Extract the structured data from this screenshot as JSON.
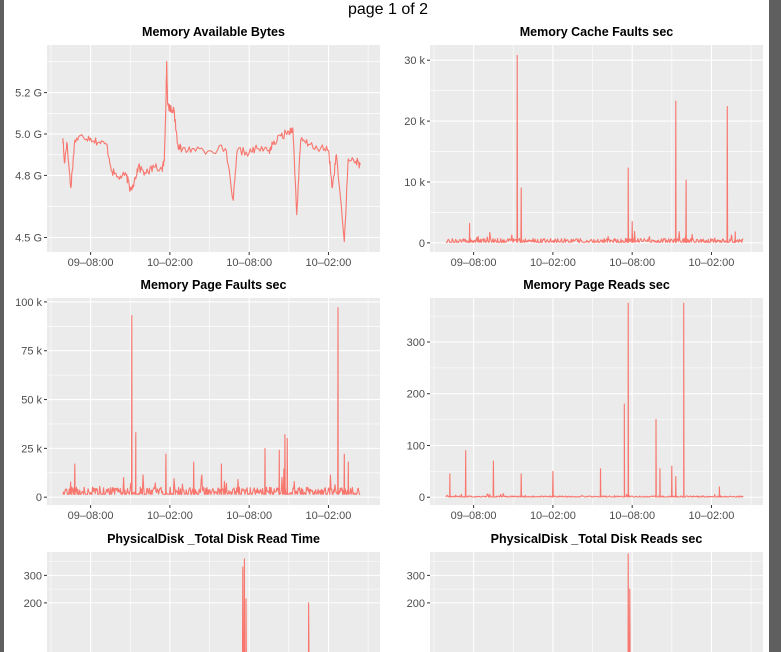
{
  "page_title": "page 1 of 2",
  "series_color": "#f8766d",
  "chart_data": [
    {
      "type": "line",
      "title": "Memory Available Bytes",
      "x_ticks": [
        "09–08:00",
        "10–02:00",
        "10–08:00",
        "10–02:00"
      ],
      "y_ticks": [
        "4.5 G",
        "4.8 G",
        "5.0 G",
        "5.2 G"
      ],
      "y_tick_values": [
        4.5,
        4.8,
        5.0,
        5.2
      ],
      "ylim": [
        4.43,
        5.43
      ],
      "x_range": [
        -0.55,
        3.65
      ],
      "x_domain": [
        -0.35,
        3.4
      ],
      "baseline": 4.85,
      "noise": 0.02,
      "spikes": [],
      "points": [
        [
          -0.35,
          4.98
        ],
        [
          -0.33,
          4.86
        ],
        [
          -0.3,
          4.96
        ],
        [
          -0.25,
          4.74
        ],
        [
          -0.2,
          4.97
        ],
        [
          -0.1,
          4.99
        ],
        [
          0.0,
          4.98
        ],
        [
          0.1,
          4.96
        ],
        [
          0.2,
          4.95
        ],
        [
          0.27,
          4.82
        ],
        [
          0.35,
          4.79
        ],
        [
          0.45,
          4.8
        ],
        [
          0.5,
          4.73
        ],
        [
          0.55,
          4.77
        ],
        [
          0.6,
          4.84
        ],
        [
          0.7,
          4.81
        ],
        [
          0.8,
          4.84
        ],
        [
          0.9,
          4.83
        ],
        [
          0.93,
          4.87
        ],
        [
          0.95,
          5.16
        ],
        [
          0.96,
          5.35
        ],
        [
          0.97,
          5.15
        ],
        [
          1.0,
          5.12
        ],
        [
          1.05,
          5.12
        ],
        [
          1.1,
          4.95
        ],
        [
          1.15,
          4.92
        ],
        [
          1.3,
          4.93
        ],
        [
          1.5,
          4.92
        ],
        [
          1.7,
          4.93
        ],
        [
          1.8,
          4.68
        ],
        [
          1.85,
          4.92
        ],
        [
          2.0,
          4.91
        ],
        [
          2.1,
          4.93
        ],
        [
          2.25,
          4.92
        ],
        [
          2.3,
          4.95
        ],
        [
          2.4,
          4.99
        ],
        [
          2.5,
          5.01
        ],
        [
          2.55,
          5.03
        ],
        [
          2.6,
          4.61
        ],
        [
          2.65,
          4.97
        ],
        [
          2.75,
          4.95
        ],
        [
          2.9,
          4.93
        ],
        [
          3.0,
          4.92
        ],
        [
          3.05,
          4.74
        ],
        [
          3.1,
          4.9
        ],
        [
          3.2,
          4.48
        ],
        [
          3.25,
          4.88
        ],
        [
          3.35,
          4.87
        ],
        [
          3.4,
          4.85
        ]
      ]
    },
    {
      "type": "line",
      "title": "Memory Cache Faults sec",
      "x_ticks": [
        "09–08:00",
        "10–02:00",
        "10–08:00",
        "10–02:00"
      ],
      "y_ticks": [
        "0",
        "10 k",
        "20 k",
        "30 k"
      ],
      "y_tick_values": [
        0,
        10,
        20,
        30
      ],
      "ylim": [
        -1.5,
        32.5
      ],
      "x_range": [
        -0.55,
        3.65
      ],
      "x_domain": [
        -0.35,
        3.4
      ],
      "baseline": 0.1,
      "noise": 0.6,
      "spikes": [
        [
          -0.05,
          3.2
        ],
        [
          0.55,
          30.8
        ],
        [
          0.6,
          9.0
        ],
        [
          1.95,
          12.3
        ],
        [
          2.0,
          3.5
        ],
        [
          2.55,
          23.3
        ],
        [
          2.68,
          10.3
        ],
        [
          3.2,
          22.4
        ],
        [
          3.3,
          1.8
        ]
      ],
      "points": []
    },
    {
      "type": "line",
      "title": "Memory Page Faults sec",
      "x_ticks": [
        "09–08:00",
        "10–02:00",
        "10–08:00",
        "10–02:00"
      ],
      "y_ticks": [
        "0",
        "25 k",
        "50 k",
        "75 k",
        "100 k"
      ],
      "y_tick_values": [
        0,
        25,
        50,
        75,
        100
      ],
      "ylim": [
        -4,
        102
      ],
      "x_range": [
        -0.55,
        3.65
      ],
      "x_domain": [
        -0.35,
        3.4
      ],
      "baseline": 1.5,
      "noise": 3.5,
      "spikes": [
        [
          -0.2,
          17
        ],
        [
          0.52,
          93
        ],
        [
          0.57,
          33
        ],
        [
          0.95,
          22
        ],
        [
          1.3,
          18
        ],
        [
          1.65,
          17
        ],
        [
          2.2,
          25
        ],
        [
          2.38,
          24
        ],
        [
          2.45,
          32
        ],
        [
          2.48,
          30
        ],
        [
          3.12,
          97
        ],
        [
          3.2,
          22
        ],
        [
          3.25,
          18
        ]
      ],
      "points": []
    },
    {
      "type": "line",
      "title": "Memory Page Reads sec",
      "x_ticks": [
        "09–08:00",
        "10–02:00",
        "10–08:00",
        "10–02:00"
      ],
      "y_ticks": [
        "0",
        "100",
        "200",
        "300"
      ],
      "y_tick_values": [
        0,
        100,
        200,
        300
      ],
      "ylim": [
        -15,
        385
      ],
      "x_range": [
        -0.55,
        3.65
      ],
      "x_domain": [
        -0.35,
        3.4
      ],
      "baseline": 0.5,
      "noise": 2,
      "spikes": [
        [
          -0.3,
          45
        ],
        [
          -0.1,
          90
        ],
        [
          0.25,
          70
        ],
        [
          0.6,
          45
        ],
        [
          1.0,
          50
        ],
        [
          1.6,
          55
        ],
        [
          1.9,
          180
        ],
        [
          1.95,
          375
        ],
        [
          2.3,
          150
        ],
        [
          2.35,
          55
        ],
        [
          2.5,
          60
        ],
        [
          2.55,
          40
        ],
        [
          2.65,
          375
        ],
        [
          3.1,
          20
        ]
      ],
      "points": []
    },
    {
      "type": "line",
      "title": "PhysicalDisk _Total Disk Read Time",
      "x_ticks": [],
      "y_ticks": [
        "200",
        "300"
      ],
      "y_tick_values": [
        200,
        300
      ],
      "ylim": [
        -15,
        385
      ],
      "x_range": [
        -0.55,
        3.65
      ],
      "x_domain": [
        -0.35,
        3.4
      ],
      "baseline": 0.5,
      "noise": 2,
      "spikes": [
        [
          1.92,
          330
        ],
        [
          1.94,
          360
        ],
        [
          1.96,
          215
        ],
        [
          2.75,
          200
        ]
      ],
      "points": []
    },
    {
      "type": "line",
      "title": "PhysicalDisk _Total Disk Reads sec",
      "x_ticks": [],
      "y_ticks": [
        "200",
        "300"
      ],
      "y_tick_values": [
        200,
        300
      ],
      "ylim": [
        -15,
        385
      ],
      "x_range": [
        -0.55,
        3.65
      ],
      "x_domain": [
        -0.35,
        3.4
      ],
      "baseline": 0.5,
      "noise": 2,
      "spikes": [
        [
          1.95,
          378
        ],
        [
          1.97,
          250
        ]
      ],
      "points": []
    }
  ]
}
